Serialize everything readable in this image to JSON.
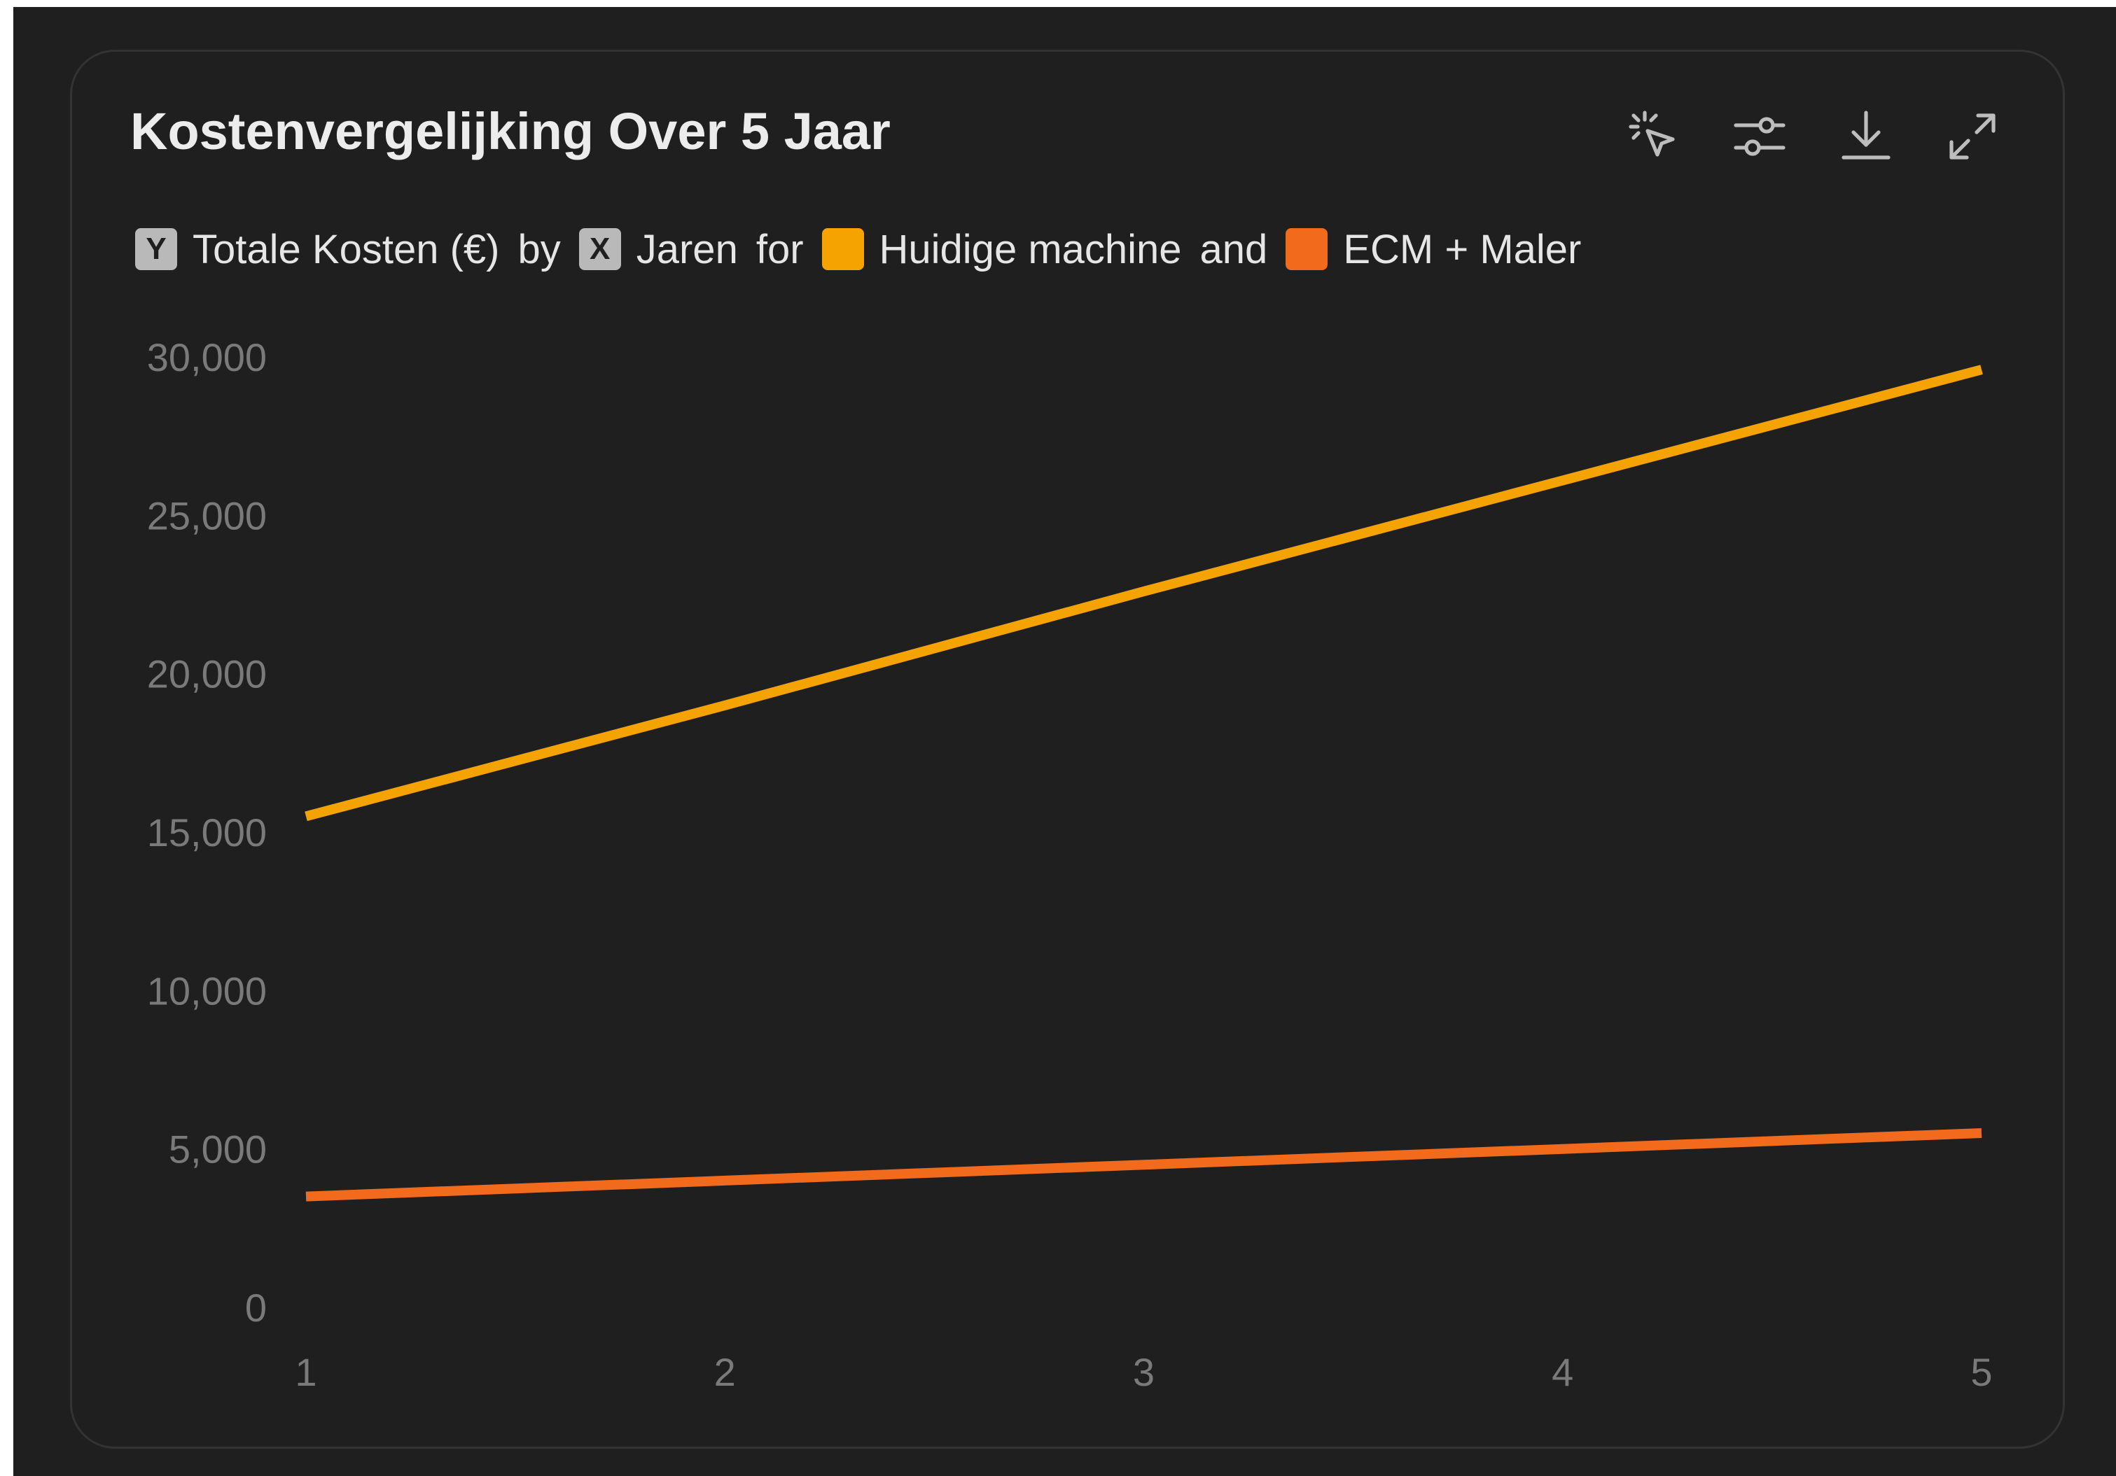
{
  "header": {
    "title": "Kostenvergelijking Over 5 Jaar",
    "tools": [
      {
        "name": "select-pointer-icon"
      },
      {
        "name": "sliders-icon"
      },
      {
        "name": "download-icon"
      },
      {
        "name": "expand-icon"
      }
    ]
  },
  "legend": {
    "y_chip": "Y",
    "y_label": "Totale Kosten (€)",
    "by_word": "by",
    "x_chip": "X",
    "x_label": "Jaren",
    "for_word": "for",
    "series1": "Huidige machine",
    "and_word": "and",
    "series2": "ECM + Maler"
  },
  "chart_data": {
    "type": "line",
    "x": [
      1,
      2,
      3,
      4,
      5
    ],
    "series": [
      {
        "name": "Huidige machine",
        "color": "#f5a300",
        "values": [
          15500,
          19000,
          22600,
          26100,
          29600
        ]
      },
      {
        "name": "ECM + Maler",
        "color": "#f26a1b",
        "values": [
          3500,
          4000,
          4500,
          5000,
          5500
        ]
      }
    ],
    "xlabel": "Jaren",
    "ylabel": "Totale Kosten (€)",
    "ylim": [
      0,
      30000
    ],
    "yticks": [
      0,
      5000,
      10000,
      15000,
      20000,
      25000,
      30000
    ],
    "ytick_labels": [
      "0",
      "5,000",
      "10,000",
      "15,000",
      "20,000",
      "25,000",
      "30,000"
    ],
    "xtick_labels": [
      "1",
      "2",
      "3",
      "4",
      "5"
    ],
    "grid": false,
    "legend_position": "top-left"
  }
}
